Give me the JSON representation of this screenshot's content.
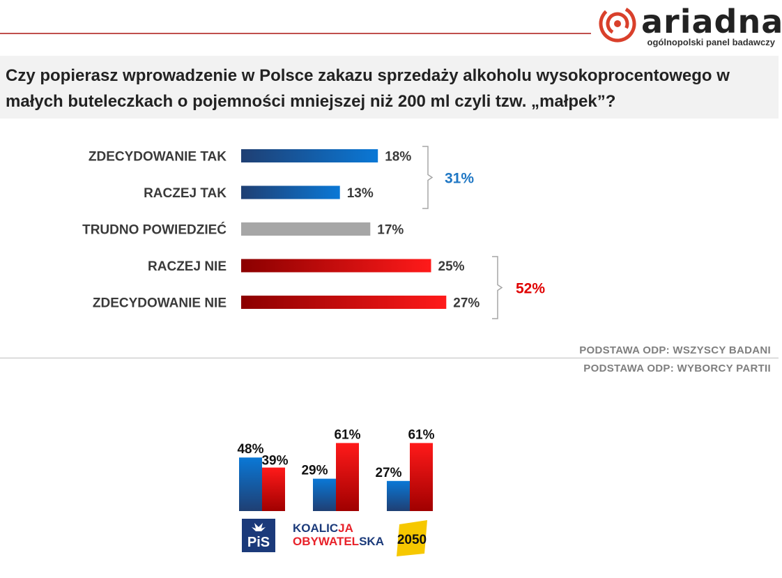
{
  "brand": {
    "name": "ariadna",
    "tagline": "ogólnopolski panel badawczy"
  },
  "question": "Czy popierasz wprowadzenie w Polsce zakazu sprzedaży alkoholu wysokoprocentowego w małych buteleczkach o pojemności mniejszej niż 200 ml czyli tzw. „małpek”?",
  "basis": {
    "all": "PODSTAWA ODP: WSZYSCY BADANI",
    "parties": "PODSTAWA ODP: WYBORCY PARTII"
  },
  "parties": {
    "pis": "PiS",
    "ko_line1_a": "KOALIC",
    "ko_line1_b": "JA",
    "ko_line2_a": "OBYWATEL",
    "ko_line2_b": "SKA",
    "p2050": "2050"
  },
  "colors": {
    "blue_dark": "#1f4e8c",
    "blue_light": "#0070c0",
    "gray": "#a6a6a6",
    "red_dark": "#8b0000",
    "red_light": "#ff0000",
    "group_yes": "#1f77c4",
    "group_no": "#e00000"
  },
  "chart_data": [
    {
      "type": "bar",
      "orientation": "horizontal",
      "categories": [
        "ZDECYDOWANIE TAK",
        "RACZEJ TAK",
        "TRUDNO POWIEDZIEĆ",
        "RACZEJ NIE",
        "ZDECYDOWANIE NIE"
      ],
      "values": [
        18,
        13,
        17,
        25,
        27
      ],
      "value_labels": [
        "18%",
        "13%",
        "17%",
        "25%",
        "27%"
      ],
      "groups": [
        {
          "label": "31%",
          "value": 31,
          "members": [
            "ZDECYDOWANIE TAK",
            "RACZEJ TAK"
          ]
        },
        {
          "label": "52%",
          "value": 52,
          "members": [
            "RACZEJ NIE",
            "ZDECYDOWANIE NIE"
          ]
        }
      ]
    },
    {
      "type": "bar",
      "categories": [
        "PiS",
        "KOALICJA OBYWATELSKA",
        "2050"
      ],
      "series": [
        {
          "values": [
            48,
            29,
            27
          ],
          "labels": [
            "48%",
            "29%",
            "27%"
          ]
        },
        {
          "values": [
            39,
            61,
            61
          ],
          "labels": [
            "39%",
            "61%",
            "61%"
          ]
        }
      ]
    }
  ]
}
